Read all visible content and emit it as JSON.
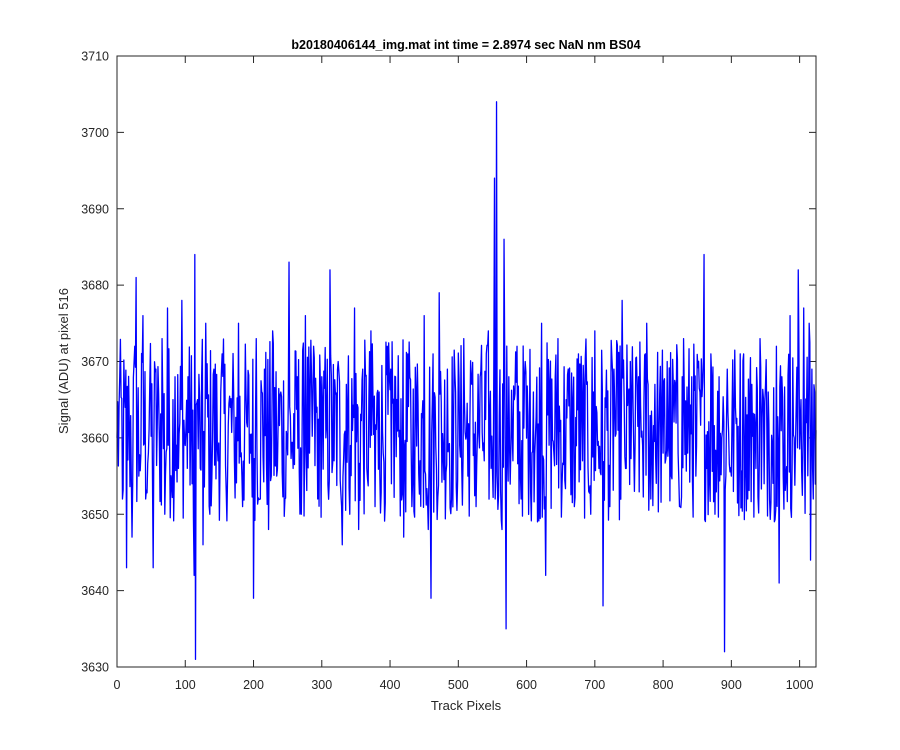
{
  "chart_data": {
    "type": "line",
    "title": "b20180406144_img.mat int time = 2.8974 sec  NaN nm BS04",
    "xlabel": "Track Pixels",
    "ylabel": "Signal (ADU) at pixel 516",
    "xlim": [
      0,
      1024
    ],
    "ylim": [
      3630,
      3710
    ],
    "xticks": [
      0,
      100,
      200,
      300,
      400,
      500,
      600,
      700,
      800,
      900,
      1000
    ],
    "yticks": [
      3630,
      3640,
      3650,
      3660,
      3670,
      3680,
      3690,
      3700,
      3710
    ],
    "grid": false,
    "line_color": "#0000ff",
    "series": [
      {
        "noise_summary": "1024 samples of noise, mean about 3661 ADU, mostly between 3645 and 3677",
        "points": [
          [
            0,
            3660
          ],
          [
            4,
            3668
          ],
          [
            8,
            3652
          ],
          [
            12,
            3664
          ],
          [
            14,
            3643
          ],
          [
            18,
            3662
          ],
          [
            22,
            3647
          ],
          [
            26,
            3672
          ],
          [
            28,
            3681
          ],
          [
            32,
            3655
          ],
          [
            38,
            3676
          ],
          [
            42,
            3652
          ],
          [
            48,
            3667
          ],
          [
            53,
            3643
          ],
          [
            57,
            3669
          ],
          [
            62,
            3660
          ],
          [
            66,
            3673
          ],
          [
            70,
            3650
          ],
          [
            74,
            3677
          ],
          [
            80,
            3654
          ],
          [
            85,
            3668
          ],
          [
            90,
            3656
          ],
          [
            95,
            3678
          ],
          [
            100,
            3659
          ],
          [
            104,
            3668
          ],
          [
            110,
            3654
          ],
          [
            113,
            3642
          ],
          [
            114,
            3684
          ],
          [
            115,
            3631
          ],
          [
            118,
            3665
          ],
          [
            122,
            3656
          ],
          [
            126,
            3646
          ],
          [
            130,
            3675
          ],
          [
            136,
            3650
          ],
          [
            142,
            3669
          ],
          [
            148,
            3657
          ],
          [
            154,
            3671
          ],
          [
            160,
            3653
          ],
          [
            166,
            3664
          ],
          [
            172,
            3657
          ],
          [
            178,
            3675
          ],
          [
            184,
            3651
          ],
          [
            190,
            3662
          ],
          [
            196,
            3658
          ],
          [
            200,
            3639
          ],
          [
            204,
            3673
          ],
          [
            210,
            3652
          ],
          [
            216,
            3669
          ],
          [
            222,
            3648
          ],
          [
            228,
            3674
          ],
          [
            234,
            3655
          ],
          [
            240,
            3666
          ],
          [
            246,
            3652
          ],
          [
            252,
            3683
          ],
          [
            258,
            3656
          ],
          [
            264,
            3668
          ],
          [
            270,
            3650
          ],
          [
            276,
            3676
          ],
          [
            282,
            3658
          ],
          [
            288,
            3672
          ],
          [
            294,
            3652
          ],
          [
            300,
            3668
          ],
          [
            306,
            3660
          ],
          [
            312,
            3682
          ],
          [
            318,
            3657
          ],
          [
            324,
            3670
          ],
          [
            330,
            3646
          ],
          [
            336,
            3667
          ],
          [
            342,
            3659
          ],
          [
            348,
            3677
          ],
          [
            354,
            3648
          ],
          [
            360,
            3669
          ],
          [
            366,
            3656
          ],
          [
            372,
            3674
          ],
          [
            378,
            3651
          ],
          [
            384,
            3666
          ],
          [
            390,
            3658
          ],
          [
            396,
            3672
          ],
          [
            402,
            3654
          ],
          [
            408,
            3668
          ],
          [
            414,
            3661
          ],
          [
            420,
            3647
          ],
          [
            426,
            3671
          ],
          [
            432,
            3651
          ],
          [
            438,
            3666
          ],
          [
            444,
            3657
          ],
          [
            450,
            3676
          ],
          [
            456,
            3648
          ],
          [
            460,
            3639
          ],
          [
            462,
            3665
          ],
          [
            468,
            3656
          ],
          [
            472,
            3679
          ],
          [
            478,
            3658
          ],
          [
            484,
            3669
          ],
          [
            490,
            3652
          ],
          [
            496,
            3666
          ],
          [
            502,
            3659
          ],
          [
            508,
            3673
          ],
          [
            514,
            3655
          ],
          [
            520,
            3667
          ],
          [
            526,
            3651
          ],
          [
            532,
            3668
          ],
          [
            538,
            3657
          ],
          [
            544,
            3674
          ],
          [
            550,
            3656
          ],
          [
            553,
            3694
          ],
          [
            554,
            3652
          ],
          [
            556,
            3704
          ],
          [
            557,
            3655
          ],
          [
            560,
            3663
          ],
          [
            564,
            3648
          ],
          [
            567,
            3686
          ],
          [
            570,
            3635
          ],
          [
            574,
            3668
          ],
          [
            580,
            3657
          ],
          [
            586,
            3672
          ],
          [
            592,
            3652
          ],
          [
            598,
            3670
          ],
          [
            604,
            3658
          ],
          [
            610,
            3666
          ],
          [
            616,
            3649
          ],
          [
            622,
            3675
          ],
          [
            628,
            3642
          ],
          [
            634,
            3667
          ],
          [
            640,
            3658
          ],
          [
            646,
            3673
          ],
          [
            652,
            3654
          ],
          [
            658,
            3665
          ],
          [
            664,
            3660
          ],
          [
            670,
            3651
          ],
          [
            676,
            3671
          ],
          [
            682,
            3657
          ],
          [
            688,
            3667
          ],
          [
            694,
            3650
          ],
          [
            700,
            3674
          ],
          [
            706,
            3656
          ],
          [
            712,
            3638
          ],
          [
            716,
            3664
          ],
          [
            722,
            3651
          ],
          [
            728,
            3669
          ],
          [
            734,
            3661
          ],
          [
            740,
            3678
          ],
          [
            746,
            3656
          ],
          [
            752,
            3670
          ],
          [
            758,
            3653
          ],
          [
            764,
            3668
          ],
          [
            770,
            3659
          ],
          [
            776,
            3675
          ],
          [
            782,
            3652
          ],
          [
            788,
            3667
          ],
          [
            794,
            3660
          ],
          [
            800,
            3658
          ],
          [
            806,
            3670
          ],
          [
            812,
            3655
          ],
          [
            818,
            3667
          ],
          [
            824,
            3651
          ],
          [
            830,
            3673
          ],
          [
            836,
            3658
          ],
          [
            842,
            3668
          ],
          [
            848,
            3655
          ],
          [
            854,
            3666
          ],
          [
            860,
            3684
          ],
          [
            864,
            3656
          ],
          [
            870,
            3671
          ],
          [
            876,
            3650
          ],
          [
            882,
            3668
          ],
          [
            886,
            3660
          ],
          [
            890,
            3632
          ],
          [
            894,
            3669
          ],
          [
            900,
            3655
          ],
          [
            906,
            3664
          ],
          [
            912,
            3658
          ],
          [
            918,
            3671
          ],
          [
            924,
            3652
          ],
          [
            930,
            3667
          ],
          [
            936,
            3656
          ],
          [
            942,
            3673
          ],
          [
            948,
            3654
          ],
          [
            954,
            3666
          ],
          [
            960,
            3659
          ],
          [
            966,
            3672
          ],
          [
            970,
            3641
          ],
          [
            974,
            3668
          ],
          [
            980,
            3655
          ],
          [
            986,
            3676
          ],
          [
            992,
            3660
          ],
          [
            998,
            3682
          ],
          [
            1002,
            3665
          ],
          [
            1006,
            3677
          ],
          [
            1010,
            3662
          ],
          [
            1014,
            3675
          ],
          [
            1016,
            3644
          ],
          [
            1018,
            3669
          ],
          [
            1020,
            3652
          ],
          [
            1022,
            3666
          ],
          [
            1024,
            3661
          ]
        ]
      }
    ]
  }
}
